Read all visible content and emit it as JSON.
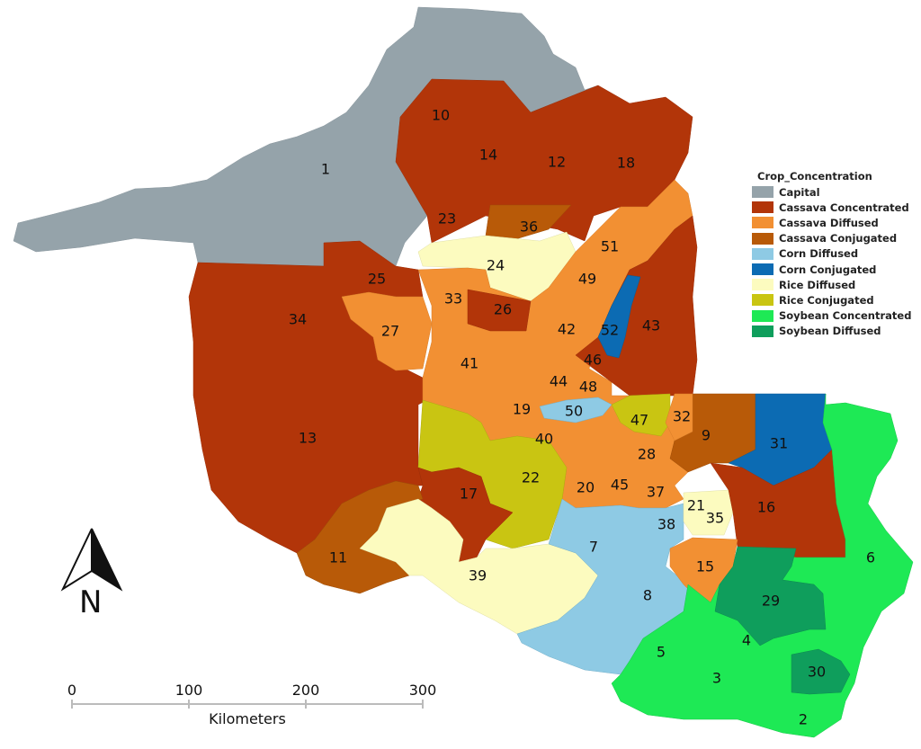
{
  "legend": {
    "title": "Crop_Concentration",
    "items": [
      {
        "label": "Capital",
        "color": "#95a3aa"
      },
      {
        "label": "Cassava Concentrated",
        "color": "#b23509"
      },
      {
        "label": "Cassava Diffused",
        "color": "#f29033"
      },
      {
        "label": "Cassava Conjugated",
        "color": "#b85a08"
      },
      {
        "label": "Corn Diffused",
        "color": "#8ecae4"
      },
      {
        "label": "Corn Conjugated",
        "color": "#0c6bb3"
      },
      {
        "label": "Rice Diffused",
        "color": "#fcfbbf"
      },
      {
        "label": "Rice Conjugated",
        "color": "#c9c512"
      },
      {
        "label": "Soybean Concentrated",
        "color": "#1ee955"
      },
      {
        "label": "Soybean Diffused",
        "color": "#0f9e5c"
      }
    ]
  },
  "regions": [
    "1",
    "2",
    "3",
    "4",
    "5",
    "6",
    "7",
    "8",
    "9",
    "10",
    "11",
    "12",
    "13",
    "14",
    "15",
    "16",
    "17",
    "18",
    "19",
    "20",
    "21",
    "22",
    "23",
    "24",
    "25",
    "26",
    "27",
    "28",
    "29",
    "30",
    "31",
    "32",
    "33",
    "34",
    "35",
    "36",
    "37",
    "38",
    "39",
    "40",
    "41",
    "42",
    "43",
    "44",
    "45",
    "46",
    "47",
    "48",
    "49",
    "50",
    "51",
    "52"
  ],
  "north_arrow": {
    "letter": "N"
  },
  "scale_bar": {
    "ticks": [
      "0",
      "100",
      "200",
      "300"
    ],
    "unit": "Kilometers"
  }
}
